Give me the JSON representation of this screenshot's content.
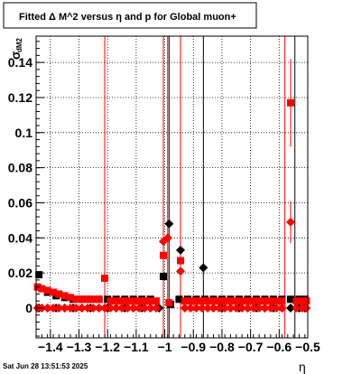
{
  "chart_data": {
    "type": "scatter",
    "title": "Fitted Δ M^2 versus η and p for Global muon+",
    "xlabel": "η",
    "ylabel": "σ",
    "ylabel_sub": "dM2",
    "timestamp": "Sat Jun 28 13:51:53 2025",
    "xlim": [
      -1.45,
      -0.5
    ],
    "ylim": [
      -0.017,
      0.155
    ],
    "x_ticks": [
      -1.4,
      -1.3,
      -1.2,
      -1.1,
      -1,
      -0.9,
      -0.8,
      -0.7,
      -0.6,
      -0.5
    ],
    "x_tick_labels": [
      "−1.4",
      "−1.3",
      "−1.2",
      "−1.1",
      "−1",
      "−0.9",
      "−0.8",
      "−0.7",
      "−0.6",
      "−0.5"
    ],
    "y_ticks": [
      0,
      0.02,
      0.04,
      0.06,
      0.08,
      0.1,
      0.12,
      0.14
    ],
    "y_tick_labels": [
      "0",
      "0.02",
      "0.04",
      "0.06",
      "0.08",
      "0.1",
      "0.12",
      "0.14"
    ],
    "grid": true,
    "colors": {
      "black": "#000000",
      "red": "#ff0000"
    },
    "series": [
      {
        "color": "#000000",
        "marker": "square",
        "points": [
          {
            "x": -1.44,
            "y": 0.019
          },
          {
            "x": -1.41,
            "y": 0.009
          },
          {
            "x": -1.38,
            "y": 0.007
          },
          {
            "x": -1.35,
            "y": 0.006
          },
          {
            "x": -1.32,
            "y": 0.005
          },
          {
            "x": -1.29,
            "y": 0.005
          },
          {
            "x": -1.26,
            "y": 0.005
          },
          {
            "x": -1.23,
            "y": 0.005
          },
          {
            "x": -1.2,
            "y": 0.005
          },
          {
            "x": -1.17,
            "y": 0.005
          },
          {
            "x": -1.14,
            "y": 0.005
          },
          {
            "x": -1.11,
            "y": 0.005
          },
          {
            "x": -1.08,
            "y": 0.005
          },
          {
            "x": -1.05,
            "y": 0.005
          },
          {
            "x": -1.005,
            "y": 0.018
          },
          {
            "x": -0.98,
            "y": 0.002
          },
          {
            "x": -0.95,
            "y": 0.005
          },
          {
            "x": -0.92,
            "y": 0.005
          },
          {
            "x": -0.89,
            "y": 0.005
          },
          {
            "x": -0.86,
            "y": 0.005
          },
          {
            "x": -0.83,
            "y": 0.005
          },
          {
            "x": -0.8,
            "y": 0.005
          },
          {
            "x": -0.77,
            "y": 0.005
          },
          {
            "x": -0.74,
            "y": 0.005
          },
          {
            "x": -0.71,
            "y": 0.005
          },
          {
            "x": -0.68,
            "y": 0.005
          },
          {
            "x": -0.65,
            "y": 0.005
          },
          {
            "x": -0.62,
            "y": 0.005
          },
          {
            "x": -0.59,
            "y": 0.005
          },
          {
            "x": -0.56,
            "y": 0.005
          },
          {
            "x": -0.53,
            "y": 0.005
          },
          {
            "x": -0.51,
            "y": 0.005
          }
        ]
      },
      {
        "color": "#000000",
        "marker": "diamond",
        "points": [
          {
            "x": -1.44,
            "y": 0.0
          },
          {
            "x": -1.41,
            "y": 0.0
          },
          {
            "x": -1.38,
            "y": 0.0
          },
          {
            "x": -1.35,
            "y": 0.0
          },
          {
            "x": -1.32,
            "y": 0.0
          },
          {
            "x": -1.29,
            "y": 0.0
          },
          {
            "x": -1.26,
            "y": 0.0
          },
          {
            "x": -1.23,
            "y": 0.0
          },
          {
            "x": -1.2,
            "y": 0.0
          },
          {
            "x": -1.17,
            "y": 0.0
          },
          {
            "x": -1.14,
            "y": 0.0
          },
          {
            "x": -1.11,
            "y": 0.0
          },
          {
            "x": -1.08,
            "y": 0.0
          },
          {
            "x": -1.05,
            "y": 0.0
          },
          {
            "x": -1.02,
            "y": 0.0
          },
          {
            "x": -0.985,
            "y": 0.048
          },
          {
            "x": -0.945,
            "y": 0.033
          },
          {
            "x": -0.865,
            "y": 0.023
          },
          {
            "x": -0.83,
            "y": 0.0
          },
          {
            "x": -0.8,
            "y": 0.0
          },
          {
            "x": -0.77,
            "y": 0.0
          },
          {
            "x": -0.74,
            "y": 0.0
          },
          {
            "x": -0.71,
            "y": 0.0
          },
          {
            "x": -0.68,
            "y": 0.0
          },
          {
            "x": -0.65,
            "y": 0.0
          },
          {
            "x": -0.62,
            "y": 0.0
          },
          {
            "x": -0.59,
            "y": 0.0
          },
          {
            "x": -0.56,
            "y": 0.0
          },
          {
            "x": -0.53,
            "y": 0.0
          },
          {
            "x": -0.51,
            "y": 0.0
          }
        ]
      },
      {
        "color": "#ff0000",
        "marker": "square",
        "points": [
          {
            "x": -1.445,
            "y": 0.012
          },
          {
            "x": -1.43,
            "y": 0.011
          },
          {
            "x": -1.41,
            "y": 0.01
          },
          {
            "x": -1.39,
            "y": 0.009
          },
          {
            "x": -1.37,
            "y": 0.008
          },
          {
            "x": -1.35,
            "y": 0.007
          },
          {
            "x": -1.33,
            "y": 0.006
          },
          {
            "x": -1.31,
            "y": 0.005
          },
          {
            "x": -1.29,
            "y": 0.005
          },
          {
            "x": -1.27,
            "y": 0.005
          },
          {
            "x": -1.25,
            "y": 0.005
          },
          {
            "x": -1.23,
            "y": 0.005
          },
          {
            "x": -1.21,
            "y": 0.017
          },
          {
            "x": -1.19,
            "y": 0.004
          },
          {
            "x": -1.17,
            "y": 0.004
          },
          {
            "x": -1.15,
            "y": 0.004
          },
          {
            "x": -1.13,
            "y": 0.004
          },
          {
            "x": -1.11,
            "y": 0.004
          },
          {
            "x": -1.09,
            "y": 0.004
          },
          {
            "x": -1.07,
            "y": 0.004
          },
          {
            "x": -1.05,
            "y": 0.004
          },
          {
            "x": -1.03,
            "y": 0.004
          },
          {
            "x": -1.005,
            "y": 0.03
          },
          {
            "x": -0.985,
            "y": 0.003
          },
          {
            "x": -0.945,
            "y": 0.027
          },
          {
            "x": -0.93,
            "y": 0.004
          },
          {
            "x": -0.91,
            "y": 0.004
          },
          {
            "x": -0.89,
            "y": 0.004
          },
          {
            "x": -0.87,
            "y": 0.004
          },
          {
            "x": -0.85,
            "y": 0.004
          },
          {
            "x": -0.83,
            "y": 0.004
          },
          {
            "x": -0.81,
            "y": 0.004
          },
          {
            "x": -0.79,
            "y": 0.004
          },
          {
            "x": -0.77,
            "y": 0.004
          },
          {
            "x": -0.75,
            "y": 0.004
          },
          {
            "x": -0.73,
            "y": 0.004
          },
          {
            "x": -0.71,
            "y": 0.004
          },
          {
            "x": -0.69,
            "y": 0.004
          },
          {
            "x": -0.67,
            "y": 0.004
          },
          {
            "x": -0.65,
            "y": 0.004
          },
          {
            "x": -0.63,
            "y": 0.004
          },
          {
            "x": -0.61,
            "y": 0.004
          },
          {
            "x": -0.59,
            "y": 0.004
          },
          {
            "x": -0.56,
            "y": 0.117,
            "err": 0.025
          },
          {
            "x": -0.54,
            "y": 0.004
          },
          {
            "x": -0.52,
            "y": 0.004
          },
          {
            "x": -0.505,
            "y": 0.004
          }
        ]
      },
      {
        "color": "#ff0000",
        "marker": "diamond",
        "points": [
          {
            "x": -1.445,
            "y": 0.0
          },
          {
            "x": -1.43,
            "y": 0.0
          },
          {
            "x": -1.41,
            "y": 0.0
          },
          {
            "x": -1.39,
            "y": 0.0
          },
          {
            "x": -1.37,
            "y": 0.0
          },
          {
            "x": -1.35,
            "y": 0.0
          },
          {
            "x": -1.33,
            "y": 0.0
          },
          {
            "x": -1.31,
            "y": 0.0
          },
          {
            "x": -1.29,
            "y": 0.0
          },
          {
            "x": -1.27,
            "y": 0.0
          },
          {
            "x": -1.25,
            "y": 0.0
          },
          {
            "x": -1.23,
            "y": 0.0
          },
          {
            "x": -1.21,
            "y": 0.0
          },
          {
            "x": -1.19,
            "y": 0.0
          },
          {
            "x": -1.17,
            "y": 0.0
          },
          {
            "x": -1.15,
            "y": 0.0
          },
          {
            "x": -1.13,
            "y": 0.0
          },
          {
            "x": -1.11,
            "y": 0.0
          },
          {
            "x": -1.09,
            "y": 0.0
          },
          {
            "x": -1.07,
            "y": 0.0
          },
          {
            "x": -1.05,
            "y": 0.0
          },
          {
            "x": -1.03,
            "y": 0.0
          },
          {
            "x": -1.005,
            "y": 0.038
          },
          {
            "x": -0.99,
            "y": 0.04
          },
          {
            "x": -0.945,
            "y": 0.021
          },
          {
            "x": -0.93,
            "y": 0.0
          },
          {
            "x": -0.91,
            "y": 0.0
          },
          {
            "x": -0.89,
            "y": 0.0
          },
          {
            "x": -0.87,
            "y": 0.0
          },
          {
            "x": -0.85,
            "y": 0.0
          },
          {
            "x": -0.83,
            "y": 0.0
          },
          {
            "x": -0.81,
            "y": 0.0
          },
          {
            "x": -0.79,
            "y": 0.0
          },
          {
            "x": -0.77,
            "y": 0.0
          },
          {
            "x": -0.75,
            "y": 0.0
          },
          {
            "x": -0.73,
            "y": 0.0
          },
          {
            "x": -0.71,
            "y": 0.0
          },
          {
            "x": -0.69,
            "y": 0.0
          },
          {
            "x": -0.67,
            "y": 0.0
          },
          {
            "x": -0.65,
            "y": 0.0
          },
          {
            "x": -0.63,
            "y": 0.0
          },
          {
            "x": -0.61,
            "y": 0.0
          },
          {
            "x": -0.59,
            "y": 0.0
          },
          {
            "x": -0.56,
            "y": 0.049,
            "err": 0.012
          },
          {
            "x": -0.54,
            "y": 0.0
          },
          {
            "x": -0.52,
            "y": 0.0
          },
          {
            "x": -0.505,
            "y": 0.0
          }
        ]
      }
    ],
    "vertical_error_lines": [
      {
        "x": -1.21,
        "color": "#ff0000"
      },
      {
        "x": -1.005,
        "color": "#ff0000"
      },
      {
        "x": -0.99,
        "color": "#ff0000"
      },
      {
        "x": -0.985,
        "color": "#000000"
      },
      {
        "x": -0.945,
        "color": "#ff0000"
      },
      {
        "x": -0.865,
        "color": "#000000"
      },
      {
        "x": -0.58,
        "color": "#ff0000"
      },
      {
        "x": -0.545,
        "color": "#000000"
      }
    ]
  }
}
